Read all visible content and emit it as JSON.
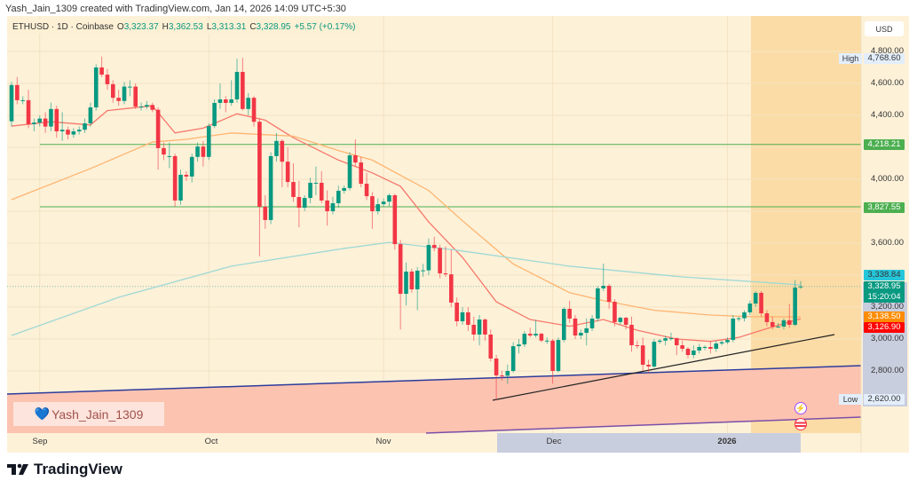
{
  "header": {
    "credit": "Yash_Jain_1309 created with TradingView.com, Jan 14, 2026 14:09 UTC+5:30"
  },
  "legend": {
    "symbol": "ETHUSD · 1D · Coinbase",
    "o_label": "O",
    "o": "3,323.37",
    "h_label": "H",
    "h": "3,362.53",
    "l_label": "L",
    "l": "3,313.31",
    "c_label": "C",
    "c": "3,328.95",
    "change": "+5.57 (+0.17%)"
  },
  "price_axis": {
    "currency": "USD",
    "ticks": [
      "4,800.00",
      "4,600.00",
      "4,400.00",
      "4,000.00",
      "3,600.00",
      "3,200.00",
      "3,000.00",
      "2,800.00"
    ],
    "high_label": "High",
    "high": "4,768.60",
    "low_label": "Low",
    "low": "2,620.00",
    "level_1": "4,218.21",
    "level_2": "3,827.55",
    "ma_long": "3,338.84",
    "last_price": "3,328.95",
    "countdown": "15:20:04",
    "ma_mid": "3,138.50",
    "ma_short": "3,126.90"
  },
  "time_axis": {
    "labels": [
      "Sep",
      "Oct",
      "Nov",
      "Dec",
      "2026"
    ]
  },
  "watermark": {
    "text": "Yash_Jain_1309",
    "icon": "blue-heart-icon"
  },
  "footer": {
    "brand": "TradingView",
    "icon": "tradingview-logo-icon"
  },
  "colors": {
    "up": "#089981",
    "down": "#f23645",
    "ma_short": "#f7786b",
    "ma_mid": "#ffb570",
    "ma_long": "#9fd9d4",
    "level": "#4caf50",
    "background": "#fdf1d8"
  },
  "chart_data": {
    "type": "candlestick",
    "symbol": "ETHUSD",
    "interval": "1D",
    "exchange": "Coinbase",
    "ylim": [
      2560,
      4900
    ],
    "y_scale": "linear",
    "grid": true,
    "x_range": [
      "2025-08-27",
      "2026-01-14"
    ],
    "candles_fields": [
      "date",
      "open",
      "high",
      "low",
      "close"
    ],
    "candles": [
      [
        "2025-08-27",
        4363,
        4610,
        4330,
        4590
      ],
      [
        "2025-08-28",
        4590,
        4640,
        4470,
        4495
      ],
      [
        "2025-08-29",
        4495,
        4520,
        4470,
        4495
      ],
      [
        "2025-08-30",
        4495,
        4560,
        4320,
        4345
      ],
      [
        "2025-08-31",
        4345,
        4380,
        4300,
        4355
      ],
      [
        "2025-09-01",
        4355,
        4400,
        4330,
        4380
      ],
      [
        "2025-09-02",
        4380,
        4420,
        4290,
        4330
      ],
      [
        "2025-09-03",
        4330,
        4480,
        4300,
        4440
      ],
      [
        "2025-09-04",
        4440,
        4460,
        4260,
        4300
      ],
      [
        "2025-09-05",
        4300,
        4420,
        4240,
        4310
      ],
      [
        "2025-09-06",
        4310,
        4330,
        4250,
        4280
      ],
      [
        "2025-09-07",
        4280,
        4320,
        4260,
        4300
      ],
      [
        "2025-09-08",
        4300,
        4330,
        4280,
        4310
      ],
      [
        "2025-09-09",
        4310,
        4380,
        4290,
        4350
      ],
      [
        "2025-09-10",
        4350,
        4480,
        4330,
        4450
      ],
      [
        "2025-09-11",
        4450,
        4720,
        4430,
        4700
      ],
      [
        "2025-09-12",
        4700,
        4768.6,
        4640,
        4655
      ],
      [
        "2025-09-13",
        4655,
        4690,
        4560,
        4595
      ],
      [
        "2025-09-14",
        4595,
        4620,
        4480,
        4510
      ],
      [
        "2025-09-15",
        4510,
        4560,
        4460,
        4490
      ],
      [
        "2025-09-16",
        4490,
        4610,
        4470,
        4580
      ],
      [
        "2025-09-17",
        4580,
        4620,
        4520,
        4580
      ],
      [
        "2025-09-18",
        4580,
        4600,
        4440,
        4455
      ],
      [
        "2025-09-19",
        4455,
        4480,
        4430,
        4455
      ],
      [
        "2025-09-20",
        4455,
        4490,
        4440,
        4465
      ],
      [
        "2025-09-21",
        4465,
        4480,
        4420,
        4435
      ],
      [
        "2025-09-22",
        4435,
        4450,
        4060,
        4195
      ],
      [
        "2025-09-23",
        4195,
        4230,
        4120,
        4155
      ],
      [
        "2025-09-24",
        4145,
        4230,
        4070,
        4145
      ],
      [
        "2025-09-25",
        4145,
        4160,
        3830,
        3867
      ],
      [
        "2025-09-26",
        3867,
        4060,
        3840,
        4028
      ],
      [
        "2025-09-27",
        4028,
        4050,
        3990,
        4017
      ],
      [
        "2025-09-28",
        4017,
        4160,
        3980,
        4140
      ],
      [
        "2025-09-29",
        4140,
        4230,
        4110,
        4205
      ],
      [
        "2025-09-30",
        4205,
        4240,
        4080,
        4140
      ],
      [
        "2025-10-01",
        4140,
        4350,
        4120,
        4333
      ],
      [
        "2025-10-02",
        4333,
        4500,
        4320,
        4478
      ],
      [
        "2025-10-03",
        4478,
        4600,
        4440,
        4500
      ],
      [
        "2025-10-04",
        4500,
        4520,
        4420,
        4478
      ],
      [
        "2025-10-05",
        4478,
        4620,
        4460,
        4500
      ],
      [
        "2025-10-06",
        4500,
        4755,
        4480,
        4672
      ],
      [
        "2025-10-07",
        4672,
        4760,
        4430,
        4440
      ],
      [
        "2025-10-08",
        4440,
        4540,
        4400,
        4510
      ],
      [
        "2025-10-09",
        4510,
        4520,
        4330,
        4360
      ],
      [
        "2025-10-10",
        4360,
        4380,
        3517,
        3828
      ],
      [
        "2025-10-11",
        3828,
        3900,
        3690,
        3745
      ],
      [
        "2025-10-12",
        3745,
        4170,
        3720,
        4145
      ],
      [
        "2025-10-13",
        4145,
        4290,
        4110,
        4240
      ],
      [
        "2025-10-14",
        4240,
        4250,
        3950,
        4110
      ],
      [
        "2025-10-15",
        4110,
        4200,
        3950,
        3983
      ],
      [
        "2025-10-16",
        3983,
        4100,
        3860,
        3889
      ],
      [
        "2025-10-17",
        3889,
        3990,
        3700,
        3822
      ],
      [
        "2025-10-18",
        3822,
        3900,
        3800,
        3883
      ],
      [
        "2025-10-19",
        3883,
        4010,
        3850,
        3978
      ],
      [
        "2025-10-20",
        3978,
        4080,
        3900,
        3978
      ],
      [
        "2025-10-21",
        3978,
        4050,
        3850,
        3867
      ],
      [
        "2025-10-22",
        3867,
        3930,
        3710,
        3800
      ],
      [
        "2025-10-23",
        3800,
        3890,
        3780,
        3850
      ],
      [
        "2025-10-24",
        3850,
        3960,
        3820,
        3928
      ],
      [
        "2025-10-25",
        3928,
        3960,
        3910,
        3945
      ],
      [
        "2025-10-26",
        3945,
        4170,
        3930,
        4150
      ],
      [
        "2025-10-27",
        4150,
        4250,
        4080,
        4105
      ],
      [
        "2025-10-28",
        4105,
        4140,
        3950,
        3972
      ],
      [
        "2025-10-29",
        3972,
        4040,
        3870,
        3894
      ],
      [
        "2025-10-30",
        3894,
        3920,
        3690,
        3800
      ],
      [
        "2025-10-31",
        3800,
        3880,
        3780,
        3844
      ],
      [
        "2025-11-01",
        3844,
        3880,
        3830,
        3860
      ],
      [
        "2025-11-02",
        3860,
        3910,
        3830,
        3900
      ],
      [
        "2025-11-03",
        3900,
        3910,
        3560,
        3594
      ],
      [
        "2025-11-04",
        3594,
        3620,
        3060,
        3283
      ],
      [
        "2025-11-05",
        3283,
        3480,
        3210,
        3422
      ],
      [
        "2025-11-06",
        3422,
        3440,
        3290,
        3311
      ],
      [
        "2025-11-07",
        3311,
        3450,
        3180,
        3428
      ],
      [
        "2025-11-08",
        3428,
        3470,
        3390,
        3430
      ],
      [
        "2025-11-09",
        3430,
        3630,
        3400,
        3589
      ],
      [
        "2025-11-10",
        3589,
        3640,
        3550,
        3570
      ],
      [
        "2025-11-11",
        3570,
        3590,
        3380,
        3411
      ],
      [
        "2025-11-12",
        3411,
        3580,
        3390,
        3405
      ],
      [
        "2025-11-13",
        3405,
        3560,
        3200,
        3228
      ],
      [
        "2025-11-14",
        3228,
        3260,
        3080,
        3111
      ],
      [
        "2025-11-15",
        3111,
        3200,
        3090,
        3167
      ],
      [
        "2025-11-16",
        3167,
        3200,
        3050,
        3089
      ],
      [
        "2025-11-17",
        3089,
        3140,
        2990,
        3028
      ],
      [
        "2025-11-18",
        3028,
        3150,
        2960,
        3122
      ],
      [
        "2025-11-19",
        3122,
        3130,
        2990,
        3028
      ],
      [
        "2025-11-20",
        3028,
        3060,
        2860,
        2878
      ],
      [
        "2025-11-21",
        2878,
        2900,
        2620,
        2772
      ],
      [
        "2025-11-22",
        2772,
        2800,
        2740,
        2770
      ],
      [
        "2025-11-23",
        2770,
        2840,
        2720,
        2800
      ],
      [
        "2025-11-24",
        2800,
        2980,
        2790,
        2955
      ],
      [
        "2025-11-25",
        2955,
        3000,
        2910,
        2966
      ],
      [
        "2025-11-26",
        2966,
        3050,
        2950,
        3033
      ],
      [
        "2025-11-27",
        3033,
        3070,
        3010,
        3022
      ],
      [
        "2025-11-28",
        3022,
        3120,
        3010,
        3033
      ],
      [
        "2025-11-29",
        3033,
        3040,
        2980,
        2990
      ],
      [
        "2025-11-30",
        2990,
        3010,
        2970,
        2990
      ],
      [
        "2025-12-01",
        2990,
        3000,
        2720,
        2800
      ],
      [
        "2025-12-02",
        2800,
        3010,
        2790,
        2994
      ],
      [
        "2025-12-03",
        2994,
        3200,
        2980,
        3189
      ],
      [
        "2025-12-04",
        3189,
        3240,
        3100,
        3128
      ],
      [
        "2025-12-05",
        3128,
        3150,
        3000,
        3022
      ],
      [
        "2025-12-06",
        3022,
        3060,
        3000,
        3039
      ],
      [
        "2025-12-07",
        3039,
        3130,
        2960,
        3067
      ],
      [
        "2025-12-08",
        3067,
        3150,
        3050,
        3128
      ],
      [
        "2025-12-09",
        3128,
        3330,
        3110,
        3317
      ],
      [
        "2025-12-10",
        3317,
        3472,
        3300,
        3333
      ],
      [
        "2025-12-11",
        3333,
        3345,
        3190,
        3233
      ],
      [
        "2025-12-12",
        3233,
        3250,
        3080,
        3106
      ],
      [
        "2025-12-13",
        3106,
        3140,
        3090,
        3133
      ],
      [
        "2025-12-14",
        3133,
        3140,
        3060,
        3089
      ],
      [
        "2025-12-15",
        3089,
        3140,
        2920,
        2961
      ],
      [
        "2025-12-16",
        2961,
        2990,
        2940,
        2960
      ],
      [
        "2025-12-17",
        2960,
        3010,
        2800,
        2839
      ],
      [
        "2025-12-18",
        2839,
        2870,
        2790,
        2828
      ],
      [
        "2025-12-19",
        2828,
        3000,
        2820,
        2983
      ],
      [
        "2025-12-20",
        2983,
        3000,
        2970,
        2990
      ],
      [
        "2025-12-21",
        2990,
        3020,
        2960,
        3005
      ],
      [
        "2025-12-22",
        3005,
        3040,
        2990,
        3005
      ],
      [
        "2025-12-23",
        3005,
        3010,
        2900,
        2961
      ],
      [
        "2025-12-24",
        2961,
        2990,
        2920,
        2939
      ],
      [
        "2025-12-25",
        2939,
        2950,
        2880,
        2900
      ],
      [
        "2025-12-26",
        2900,
        2960,
        2880,
        2928
      ],
      [
        "2025-12-27",
        2928,
        2970,
        2910,
        2950
      ],
      [
        "2025-12-28",
        2950,
        2960,
        2930,
        2950
      ],
      [
        "2025-12-29",
        2950,
        2990,
        2910,
        2939
      ],
      [
        "2025-12-30",
        2939,
        2990,
        2920,
        2972
      ],
      [
        "2025-12-31",
        2972,
        2990,
        2960,
        2980
      ],
      [
        "2026-01-01",
        2980,
        3010,
        2970,
        2994
      ],
      [
        "2026-01-02",
        2994,
        3150,
        2980,
        3128
      ],
      [
        "2026-01-03",
        3128,
        3140,
        3110,
        3130
      ],
      [
        "2026-01-04",
        3130,
        3180,
        3110,
        3167
      ],
      [
        "2026-01-05",
        3167,
        3240,
        3150,
        3222
      ],
      [
        "2026-01-06",
        3222,
        3300,
        3200,
        3289
      ],
      [
        "2026-01-07",
        3289,
        3300,
        3140,
        3161
      ],
      [
        "2026-01-08",
        3161,
        3180,
        3080,
        3106
      ],
      [
        "2026-01-09",
        3106,
        3140,
        3060,
        3078
      ],
      [
        "2026-01-10",
        3078,
        3100,
        3070,
        3078
      ],
      [
        "2026-01-11",
        3078,
        3130,
        3060,
        3117
      ],
      [
        "2026-01-12",
        3117,
        3220,
        3070,
        3089
      ],
      [
        "2026-01-13",
        3089,
        3370,
        3080,
        3322
      ],
      [
        "2026-01-14",
        3323.37,
        3362.53,
        3313.31,
        3328.95
      ]
    ],
    "moving_averages": [
      {
        "color": "#f7786b",
        "last": 3126.9,
        "points": [
          [
            "2025-08-27",
            4333
          ],
          [
            "2025-09-03",
            4360
          ],
          [
            "2025-09-10",
            4340
          ],
          [
            "2025-09-13",
            4430
          ],
          [
            "2025-09-21",
            4460
          ],
          [
            "2025-09-25",
            4290
          ],
          [
            "2025-09-30",
            4320
          ],
          [
            "2025-10-06",
            4410
          ],
          [
            "2025-10-11",
            4370
          ],
          [
            "2025-10-16",
            4260
          ],
          [
            "2025-10-24",
            4120
          ],
          [
            "2025-10-30",
            4040
          ],
          [
            "2025-11-04",
            3956
          ],
          [
            "2025-11-09",
            3733
          ],
          [
            "2025-11-15",
            3511
          ],
          [
            "2025-11-21",
            3233
          ],
          [
            "2025-11-27",
            3122
          ],
          [
            "2025-12-04",
            3080
          ],
          [
            "2025-12-10",
            3122
          ],
          [
            "2025-12-16",
            3055
          ],
          [
            "2025-12-23",
            3000
          ],
          [
            "2025-12-29",
            2985
          ],
          [
            "2026-01-03",
            3010
          ],
          [
            "2026-01-08",
            3065
          ],
          [
            "2026-01-14",
            3126.9
          ]
        ]
      },
      {
        "color": "#ffb570",
        "last": 3138.5,
        "points": [
          [
            "2025-08-27",
            3872
          ],
          [
            "2025-09-10",
            4067
          ],
          [
            "2025-09-21",
            4233
          ],
          [
            "2025-09-27",
            4250
          ],
          [
            "2025-10-05",
            4290
          ],
          [
            "2025-10-16",
            4270
          ],
          [
            "2025-10-24",
            4180
          ],
          [
            "2025-10-30",
            4120
          ],
          [
            "2025-11-09",
            3930
          ],
          [
            "2025-11-15",
            3740
          ],
          [
            "2025-11-24",
            3470
          ],
          [
            "2025-12-04",
            3290
          ],
          [
            "2025-12-10",
            3240
          ],
          [
            "2025-12-19",
            3180
          ],
          [
            "2025-12-29",
            3150
          ],
          [
            "2026-01-05",
            3140
          ],
          [
            "2026-01-14",
            3138.5
          ]
        ]
      },
      {
        "color": "#9fd9d4",
        "last": 3338.84,
        "points": [
          [
            "2025-08-27",
            3022
          ],
          [
            "2025-09-15",
            3261
          ],
          [
            "2025-10-05",
            3456
          ],
          [
            "2025-10-25",
            3567
          ],
          [
            "2025-11-02",
            3605
          ],
          [
            "2025-11-14",
            3556
          ],
          [
            "2025-12-04",
            3456
          ],
          [
            "2025-12-24",
            3389
          ],
          [
            "2026-01-14",
            3338.84
          ]
        ]
      }
    ],
    "horizontal_levels": [
      4218.21,
      3827.55
    ],
    "last_price": 3328.95
  }
}
